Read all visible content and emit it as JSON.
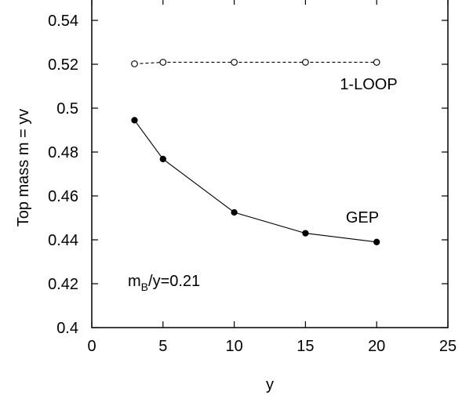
{
  "chart_data": {
    "type": "line",
    "title": "",
    "xlabel": "y",
    "ylabel": "Top mass m = yv",
    "xlim": [
      0,
      25
    ],
    "ylim": [
      0.4,
      0.55
    ],
    "x_ticks": [
      "0",
      "5",
      "10",
      "15",
      "20",
      "25"
    ],
    "y_ticks": [
      "0.4",
      "0.42",
      "0.44",
      "0.46",
      "0.48",
      "0.5",
      "0.52",
      "0.54"
    ],
    "grid": false,
    "series": [
      {
        "name": "1-LOOP",
        "x": [
          3,
          5,
          10,
          15,
          20
        ],
        "y": [
          0.5202,
          0.5209,
          0.5209,
          0.5209,
          0.5209
        ],
        "marker": "open-circle",
        "line_style": "dashed",
        "color": "#000000"
      },
      {
        "name": "GEP",
        "x": [
          3,
          5,
          10,
          15,
          20
        ],
        "y": [
          0.4945,
          0.4768,
          0.4525,
          0.443,
          0.439
        ],
        "marker": "filled-circle",
        "line_style": "solid",
        "color": "#000000"
      }
    ],
    "annotations": {
      "param_main": "m",
      "param_sub": "B",
      "param_rest": "/y=0.21"
    }
  }
}
